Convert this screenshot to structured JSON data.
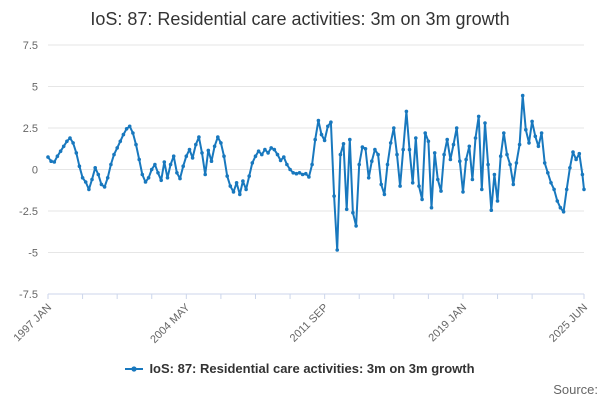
{
  "title": "IoS: 87: Residential care activities: 3m on 3m growth",
  "source_label": "Source:",
  "legend": {
    "label": "IoS: 87: Residential care activities: 3m on 3m growth"
  },
  "colors": {
    "series": "#1878be",
    "grid": "#e6e6e6",
    "axis": "#ccd6eb",
    "axis_label": "#666666",
    "title": "#333333"
  },
  "chart_data": {
    "type": "line",
    "title": "IoS: 87: Residential care activities: 3m on 3m growth",
    "xlabel": "",
    "ylabel": "",
    "ylim": [
      -7.5,
      7.5
    ],
    "y_ticks": [
      7.5,
      5,
      2.5,
      0,
      -2.5,
      -5,
      -7.5
    ],
    "grid": true,
    "legend_position": "bottom",
    "x_unit": "months since 1997 JAN",
    "x_range_months": [
      0,
      341
    ],
    "x_tick_months": [
      0,
      22,
      44,
      66,
      88,
      110,
      132,
      154,
      176,
      198,
      220,
      242,
      264,
      286,
      308,
      341
    ],
    "x_axis_labels": [
      {
        "month": 0,
        "label": "1997 JAN"
      },
      {
        "month": 88,
        "label": "2004 MAY"
      },
      {
        "month": 176,
        "label": "2011 SEP"
      },
      {
        "month": 264,
        "label": "2019 JAN"
      },
      {
        "month": 341,
        "label": "2025 JUN"
      }
    ],
    "series": [
      {
        "name": "IoS: 87: Residential care activities: 3m on 3m growth",
        "color": "#1878be",
        "marker": "dot",
        "x_months": [
          0,
          2,
          4,
          6,
          8,
          10,
          12,
          14,
          16,
          18,
          20,
          22,
          24,
          26,
          28,
          30,
          32,
          34,
          36,
          38,
          40,
          42,
          44,
          46,
          48,
          50,
          52,
          54,
          56,
          58,
          60,
          62,
          64,
          66,
          68,
          70,
          72,
          74,
          76,
          78,
          80,
          82,
          84,
          86,
          88,
          90,
          92,
          94,
          96,
          98,
          100,
          102,
          104,
          106,
          108,
          110,
          112,
          114,
          116,
          118,
          120,
          122,
          124,
          126,
          128,
          130,
          132,
          134,
          136,
          138,
          140,
          142,
          144,
          146,
          148,
          150,
          152,
          154,
          156,
          158,
          160,
          162,
          164,
          166,
          168,
          170,
          172,
          174,
          176,
          178,
          180,
          182,
          184,
          186,
          188,
          190,
          192,
          194,
          196,
          198,
          200,
          202,
          204,
          206,
          208,
          210,
          212,
          214,
          216,
          218,
          220,
          222,
          224,
          226,
          228,
          230,
          232,
          234,
          236,
          238,
          240,
          242,
          244,
          246,
          248,
          250,
          252,
          254,
          256,
          258,
          260,
          262,
          264,
          266,
          268,
          270,
          272,
          274,
          276,
          278,
          280,
          282,
          284,
          286,
          288,
          290,
          292,
          294,
          296,
          298,
          300,
          302,
          304,
          306,
          308,
          310,
          312,
          314,
          316,
          318,
          320,
          322,
          324,
          326,
          328,
          330,
          332,
          334,
          336,
          338,
          340,
          341
        ],
        "values": [
          0.75,
          0.5,
          0.45,
          0.8,
          1.1,
          1.4,
          1.7,
          1.9,
          1.6,
          1.0,
          0.2,
          -0.5,
          -0.75,
          -1.2,
          -0.6,
          0.1,
          -0.3,
          -0.9,
          -1.05,
          -0.5,
          0.3,
          0.9,
          1.3,
          1.7,
          2.1,
          2.45,
          2.6,
          2.2,
          1.5,
          0.6,
          -0.3,
          -0.75,
          -0.5,
          0.0,
          0.3,
          -0.2,
          -0.65,
          0.45,
          -0.5,
          0.3,
          0.8,
          -0.2,
          -0.55,
          0.2,
          0.8,
          1.2,
          0.7,
          1.5,
          1.95,
          1.0,
          -0.3,
          1.15,
          0.5,
          1.4,
          1.95,
          1.6,
          0.8,
          -0.4,
          -1.0,
          -1.35,
          -0.8,
          -1.5,
          -0.7,
          -1.2,
          -0.4,
          0.4,
          0.8,
          1.1,
          0.9,
          1.2,
          1.0,
          1.3,
          1.2,
          0.9,
          0.55,
          0.75,
          0.3,
          0.0,
          -0.2,
          -0.25,
          -0.2,
          -0.3,
          -0.25,
          -0.45,
          0.3,
          1.8,
          2.95,
          2.1,
          1.75,
          2.6,
          2.85,
          -1.6,
          -4.85,
          0.9,
          1.55,
          -2.4,
          1.8,
          -2.6,
          -3.4,
          0.3,
          1.35,
          1.25,
          -0.5,
          0.5,
          1.2,
          0.9,
          -0.9,
          -1.5,
          0.3,
          1.6,
          2.5,
          0.9,
          -1.0,
          1.2,
          3.5,
          1.2,
          -0.8,
          1.9,
          -1.0,
          -1.8,
          2.2,
          1.7,
          -2.3,
          1.0,
          -0.6,
          -1.3,
          0.9,
          1.8,
          0.6,
          1.5,
          2.5,
          0.5,
          -1.35,
          0.6,
          1.4,
          -0.6,
          1.9,
          3.2,
          -1.2,
          2.8,
          0.3,
          -2.45,
          -0.3,
          -1.9,
          0.8,
          2.2,
          0.9,
          0.3,
          -0.9,
          0.4,
          1.5,
          4.45,
          2.4,
          1.6,
          2.9,
          2.0,
          1.4,
          2.2,
          0.4,
          -0.2,
          -0.8,
          -1.2,
          -1.9,
          -2.3,
          -2.55,
          -1.2,
          0.1,
          1.05,
          0.6,
          0.95,
          -0.3,
          -1.2
        ]
      }
    ]
  }
}
